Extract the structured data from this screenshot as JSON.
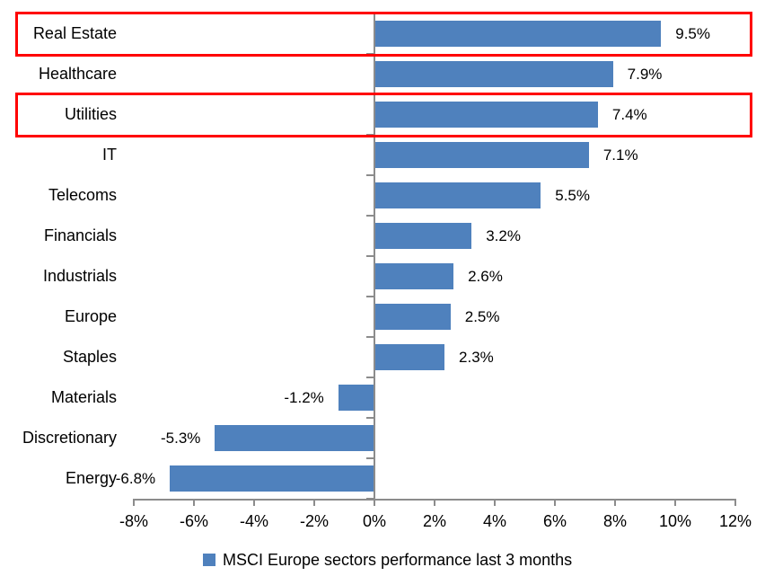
{
  "chart_data": {
    "type": "bar",
    "orientation": "horizontal",
    "title": "",
    "xlabel": "",
    "ylabel": "",
    "categories": [
      "Real Estate",
      "Healthcare",
      "Utilities",
      "IT",
      "Telecoms",
      "Financials",
      "Industrials",
      "Europe",
      "Staples",
      "Materials",
      "Discretionary",
      "Energy"
    ],
    "values": [
      9.5,
      7.9,
      7.4,
      7.1,
      5.5,
      3.2,
      2.6,
      2.5,
      2.3,
      -1.2,
      -5.3,
      -6.8
    ],
    "value_labels": [
      "9.5%",
      "7.9%",
      "7.4%",
      "7.1%",
      "5.5%",
      "3.2%",
      "2.6%",
      "2.5%",
      "2.3%",
      "-1.2%",
      "-5.3%",
      "-6.8%"
    ],
    "xlim": [
      -8,
      12
    ],
    "x_ticks": [
      -8,
      -6,
      -4,
      -2,
      0,
      2,
      4,
      6,
      8,
      10,
      12
    ],
    "x_tick_labels": [
      "-8%",
      "-6%",
      "-4%",
      "-2%",
      "0%",
      "2%",
      "4%",
      "6%",
      "8%",
      "10%",
      "12%"
    ],
    "grid": false,
    "legend": "MSCI Europe sectors performance last 3 months",
    "legend_position": "bottom-center",
    "highlighted_categories": [
      "Real Estate",
      "Utilities"
    ],
    "colors": {
      "bar": "#4F81BD",
      "highlight_box": "#FF0000",
      "axis": "#8C8C8C",
      "text": "#000000",
      "background": "#FFFFFF"
    }
  }
}
